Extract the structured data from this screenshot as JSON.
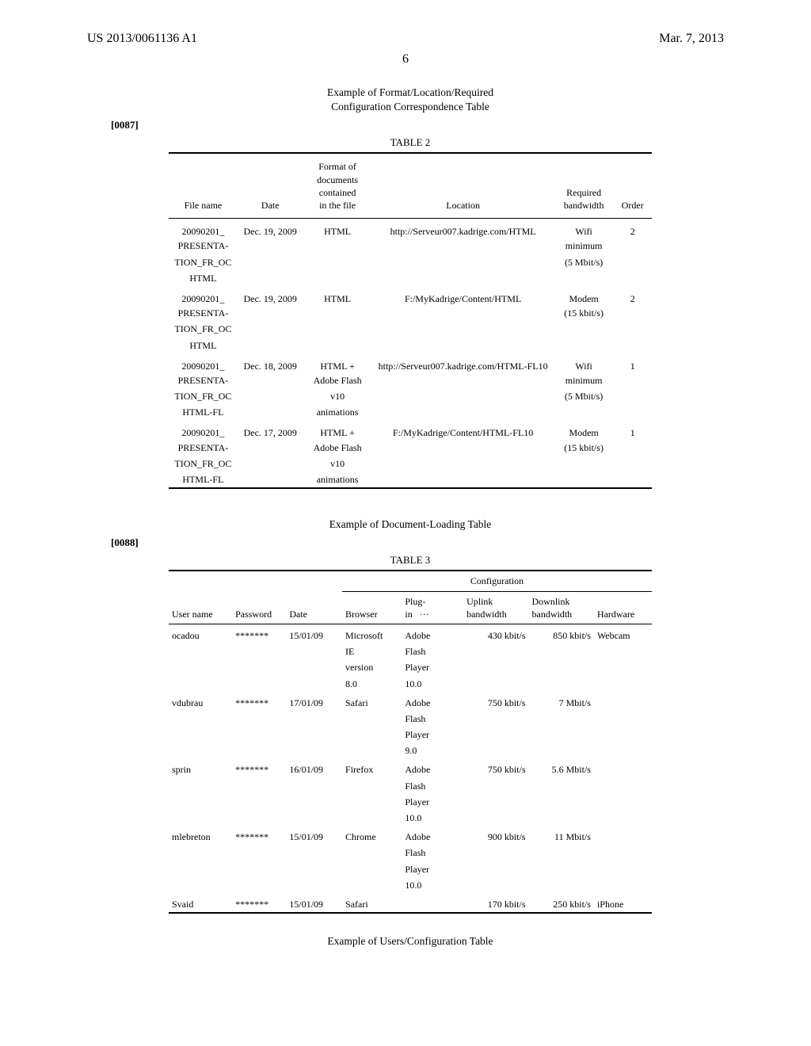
{
  "header": {
    "pub_no": "US 2013/0061136 A1",
    "date": "Mar. 7, 2013",
    "page_number": "6"
  },
  "sectionA": {
    "title_line1": "Example of Format/Location/Required",
    "title_line2": "Configuration Correspondence Table",
    "para": "[0087]",
    "caption": "TABLE 2",
    "cols": {
      "file": "File name",
      "date": "Date",
      "format_l1": "Format of",
      "format_l2": "documents",
      "format_l3": "contained",
      "format_l4": "in the file",
      "location": "Location",
      "req_l1": "Required",
      "req_l2": "bandwidth",
      "order": "Order"
    },
    "rows": [
      {
        "file_l1": "20090201_",
        "file_l2": "PRESENTA-",
        "file_l3": "TION_FR_OC",
        "file_l4": "HTML",
        "date": "Dec. 19, 2009",
        "fmt_l1": "HTML",
        "fmt_l2": "",
        "fmt_l3": "",
        "fmt_l4": "",
        "loc": "http://Serveur007.kadrige.com/HTML",
        "bw_l1": "Wifi",
        "bw_l2": "minimum",
        "bw_l3": "(5 Mbit/s)",
        "order": "2"
      },
      {
        "file_l1": "20090201_",
        "file_l2": "PRESENTA-",
        "file_l3": "TION_FR_OC",
        "file_l4": "HTML",
        "date": "Dec. 19, 2009",
        "fmt_l1": "HTML",
        "fmt_l2": "",
        "fmt_l3": "",
        "fmt_l4": "",
        "loc": "F:/MyKadrige/Content/HTML",
        "bw_l1": "Modem",
        "bw_l2": "(15 kbit/s)",
        "bw_l3": "",
        "order": "2"
      },
      {
        "file_l1": "20090201_",
        "file_l2": "PRESENTA-",
        "file_l3": "TION_FR_OC",
        "file_l4": "HTML-FL",
        "date": "Dec. 18, 2009",
        "fmt_l1": "HTML +",
        "fmt_l2": "Adobe Flash",
        "fmt_l3": "v10",
        "fmt_l4": "animations",
        "loc": "http://Serveur007.kadrige.com/HTML-FL10",
        "bw_l1": "Wifi",
        "bw_l2": "minimum",
        "bw_l3": "(5 Mbit/s)",
        "order": "1"
      },
      {
        "file_l1": "20090201_",
        "file_l2": "PRESENTA-",
        "file_l3": "TION_FR_OC",
        "file_l4": "HTML-FL",
        "date": "Dec. 17, 2009",
        "fmt_l1": "HTML +",
        "fmt_l2": "Adobe Flash",
        "fmt_l3": "v10",
        "fmt_l4": "animations",
        "loc": "F:/MyKadrige/Content/HTML-FL10",
        "bw_l1": "Modem",
        "bw_l2": "(15 kbit/s)",
        "bw_l3": "",
        "order": "1"
      }
    ]
  },
  "sectionB": {
    "title": "Example of Document-Loading Table",
    "para": "[0088]",
    "caption": "TABLE 3",
    "config_header": "Configuration",
    "cols": {
      "user": "User name",
      "pass": "Password",
      "date": "Date",
      "browser": "Browser",
      "plugin_l1": "Plug-",
      "plugin_l2": "in",
      "dots": "···",
      "up_l1": "Uplink",
      "up_l2": "bandwidth",
      "down_l1": "Downlink",
      "down_l2": "bandwidth",
      "hw": "Hardware"
    },
    "rows": [
      {
        "user": "ocadou",
        "pass": "*******",
        "date": "15/01/09",
        "br_l1": "Microsoft",
        "br_l2": "IE",
        "br_l3": "version",
        "br_l4": "8.0",
        "pl_l1": "Adobe",
        "pl_l2": "Flash",
        "pl_l3": "Player",
        "pl_l4": "10.0",
        "up": "430 kbit/s",
        "down": "850 kbit/s",
        "hw": "Webcam"
      },
      {
        "user": "vdubrau",
        "pass": "*******",
        "date": "17/01/09",
        "br_l1": "Safari",
        "br_l2": "",
        "br_l3": "",
        "br_l4": "",
        "pl_l1": "Adobe",
        "pl_l2": "Flash",
        "pl_l3": "Player",
        "pl_l4": "9.0",
        "up": "750 kbit/s",
        "down": "7 Mbit/s",
        "hw": ""
      },
      {
        "user": "sprin",
        "pass": "*******",
        "date": "16/01/09",
        "br_l1": "Firefox",
        "br_l2": "",
        "br_l3": "",
        "br_l4": "",
        "pl_l1": "Adobe",
        "pl_l2": "Flash",
        "pl_l3": "Player",
        "pl_l4": "10.0",
        "up": "750 kbit/s",
        "down": "5.6 Mbit/s",
        "hw": ""
      },
      {
        "user": "mlebreton",
        "pass": "*******",
        "date": "15/01/09",
        "br_l1": "Chrome",
        "br_l2": "",
        "br_l3": "",
        "br_l4": "",
        "pl_l1": "Adobe",
        "pl_l2": "Flash",
        "pl_l3": "Player",
        "pl_l4": "10.0",
        "up": "900 kbit/s",
        "down": "11 Mbit/s",
        "hw": ""
      },
      {
        "user": "Svaid",
        "pass": "*******",
        "date": "15/01/09",
        "br_l1": "Safari",
        "br_l2": "",
        "br_l3": "",
        "br_l4": "",
        "pl_l1": "",
        "pl_l2": "",
        "pl_l3": "",
        "pl_l4": "",
        "up": "170 kbit/s",
        "down": "250 kbit/s",
        "hw": "iPhone"
      }
    ]
  },
  "sectionC": {
    "title": "Example of Users/Configuration Table"
  }
}
